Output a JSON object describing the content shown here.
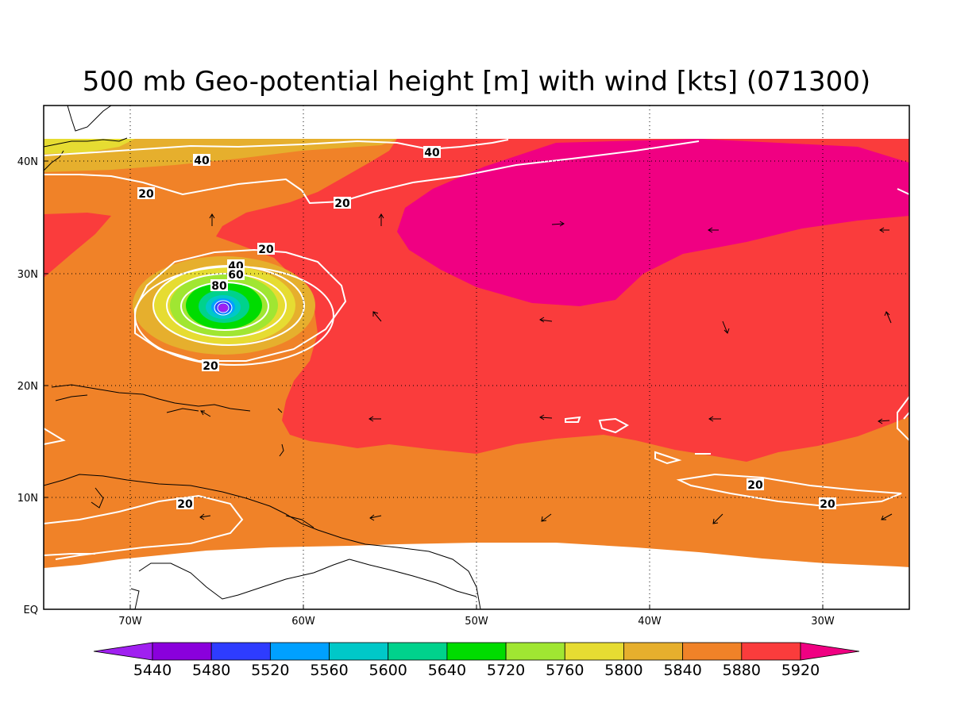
{
  "title": "500 mb Geo-potential height [m] with wind [kts] (071300)",
  "map": {
    "lon_labels": [
      "70W",
      "60W",
      "50W",
      "40W",
      "30W"
    ],
    "lat_labels": [
      "40N",
      "30N",
      "20N",
      "10N",
      "EQ"
    ]
  },
  "colorbar": {
    "labels": [
      "5440",
      "5480",
      "5520",
      "5560",
      "5600",
      "5640",
      "5720",
      "5760",
      "5800",
      "5840",
      "5880",
      "5920"
    ],
    "colors": [
      "#a020f0",
      "#8a00dc",
      "#2e3cff",
      "#00a0ff",
      "#00c8c8",
      "#00d28c",
      "#00dc00",
      "#a0e632",
      "#e6dc32",
      "#e6af2d",
      "#f08228",
      "#fa3c3c",
      "#f00082"
    ]
  },
  "wind_contour_labels": [
    "40",
    "40",
    "20",
    "20",
    "20",
    "40",
    "60",
    "80",
    "20",
    "20",
    "20",
    "20"
  ]
}
